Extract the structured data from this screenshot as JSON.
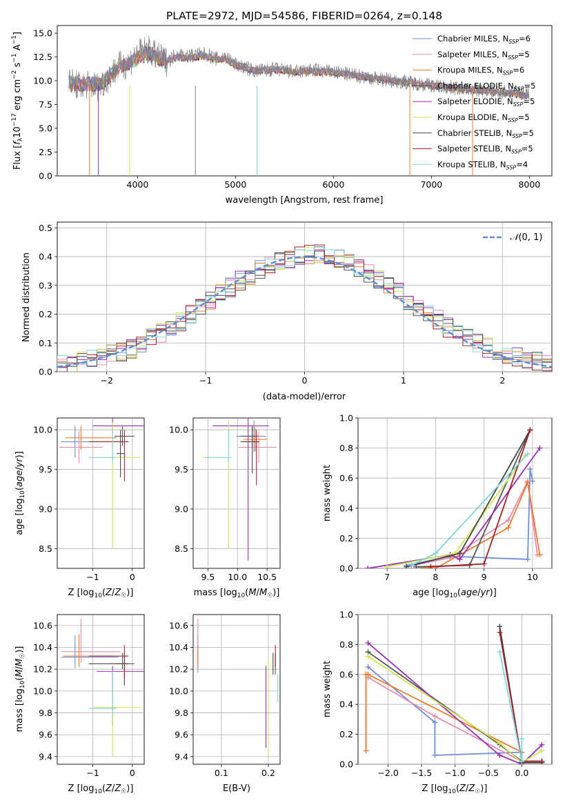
{
  "figure_title": "PLATE=2972, MJD=54586, FIBERID=0264, z=0.148",
  "palette": [
    "#6b8fd9",
    "#e98ab0",
    "#f07a27",
    "#555555",
    "#9b2db5",
    "#cde653",
    "#444444",
    "#a51e22",
    "#7fd3e0"
  ],
  "chart_data": [
    {
      "id": "spectrum",
      "type": "line",
      "title": "PLATE=2972, MJD=54586, FIBERID=0264, z=0.148",
      "xlabel": "wavelength [Angstrom, rest frame]",
      "ylabel": "Flux [f_λ10^-17 erg cm^-2 s^-1 A^-1]",
      "xlim": [
        3180,
        8230
      ],
      "ylim": [
        0,
        15.8
      ],
      "xticks": [
        4000,
        5000,
        6000,
        7000,
        8000
      ],
      "yticks": [
        0.0,
        2.5,
        5.0,
        7.5,
        10.0,
        12.5,
        15.0
      ],
      "legend_position": "top-right",
      "legend": [
        "Chabrier MILES, N_SSP=6",
        "Salpeter MILES, N_SSP=5",
        "Kroupa MILES, N_SSP=6",
        "Chabrier ELODIE, N_SSP=5",
        "Salpeter ELODIE, N_SSP=5",
        "Kroupa ELODIE, N_SSP=5",
        "Chabrier STELIB, N_SSP=5",
        "Salpeter STELIB, N_SSP=5",
        "Kroupa STELIB, N_SSP=4"
      ],
      "observed": {
        "x": [
          3300,
          3400,
          3500,
          3600,
          3700,
          3800,
          3900,
          4000,
          4100,
          4200,
          4300,
          4400,
          4500,
          4600,
          4700,
          4800,
          4900,
          5000,
          5200,
          5400,
          5600,
          5800,
          6000,
          6200,
          6400,
          6600,
          6800,
          7000,
          7200,
          7400,
          7600,
          7800,
          8000
        ],
        "y": [
          9.9,
          9.5,
          9.6,
          9.4,
          10.3,
          11.5,
          11.8,
          12.8,
          13.3,
          12.5,
          12.0,
          12.8,
          12.6,
          12.7,
          12.8,
          12.3,
          12.5,
          11.7,
          11.0,
          11.2,
          10.9,
          11.1,
          10.9,
          10.6,
          10.3,
          10.0,
          9.8,
          9.5,
          9.3,
          9.1,
          8.9,
          8.8,
          8.7
        ]
      },
      "models": {
        "x": [
          3300,
          3400,
          3500,
          3600,
          3700,
          3800,
          3900,
          4000,
          4100,
          4200,
          4300,
          4400,
          4500,
          4600,
          4700,
          4800,
          4900,
          5000,
          5200,
          5400,
          5600,
          5800,
          6000,
          6200,
          6400,
          6600,
          6800,
          7000,
          7200,
          7400,
          7600,
          7800,
          8000
        ],
        "y": [
          9.8,
          9.6,
          9.7,
          9.6,
          10.4,
          11.4,
          11.7,
          12.4,
          12.9,
          12.5,
          12.1,
          12.5,
          12.4,
          12.5,
          12.6,
          12.3,
          12.3,
          11.7,
          11.1,
          11.2,
          11.0,
          11.0,
          10.9,
          10.6,
          10.3,
          10.0,
          9.8,
          9.5,
          9.3,
          9.1,
          8.9,
          8.7,
          8.4
        ]
      }
    },
    {
      "id": "residuals",
      "type": "line",
      "xlabel": "(data-model)/error",
      "ylabel": "Normed distribution",
      "xlim": [
        -2.5,
        2.5
      ],
      "ylim": [
        0,
        0.52
      ],
      "xticks": [
        -2,
        -1,
        0,
        1,
        2
      ],
      "yticks": [
        0.0,
        0.1,
        0.2,
        0.3,
        0.4,
        0.5
      ],
      "legend_position": "top-right",
      "reference_curve": "N(0,1)",
      "bin_edges": [
        -2.5,
        -2.4,
        -2.3,
        -2.2,
        -2.1,
        -2.0,
        -1.9,
        -1.8,
        -1.7,
        -1.6,
        -1.5,
        -1.4,
        -1.3,
        -1.2,
        -1.1,
        -1.0,
        -0.9,
        -0.8,
        -0.7,
        -0.6,
        -0.5,
        -0.4,
        -0.3,
        -0.2,
        -0.1,
        0.0,
        0.1,
        0.2,
        0.3,
        0.4,
        0.5,
        0.6,
        0.7,
        0.8,
        0.9,
        1.0,
        1.1,
        1.2,
        1.3,
        1.4,
        1.5,
        1.6,
        1.7,
        1.8,
        1.9,
        2.0,
        2.1,
        2.2,
        2.3,
        2.4,
        2.5
      ],
      "histogram_values": [
        0.025,
        0.03,
        0.035,
        0.04,
        0.05,
        0.06,
        0.07,
        0.08,
        0.1,
        0.115,
        0.135,
        0.155,
        0.175,
        0.2,
        0.22,
        0.245,
        0.27,
        0.295,
        0.315,
        0.335,
        0.355,
        0.37,
        0.385,
        0.395,
        0.4,
        0.41,
        0.41,
        0.4,
        0.395,
        0.38,
        0.365,
        0.345,
        0.32,
        0.3,
        0.275,
        0.25,
        0.225,
        0.2,
        0.18,
        0.155,
        0.135,
        0.115,
        0.1,
        0.085,
        0.07,
        0.06,
        0.05,
        0.04,
        0.035,
        0.03
      ]
    },
    {
      "id": "age-vs-Z",
      "type": "scatter",
      "xlabel": "Z [log10(Z/Z☉)]",
      "ylabel": "age [log10(age/yr)]",
      "xlim": [
        -1.9,
        0.3
      ],
      "ylim": [
        8.25,
        10.15
      ],
      "xticks": [
        -1,
        0
      ],
      "yticks": [
        8.5,
        9.0,
        9.5,
        10.0
      ],
      "points": [
        {
          "x": -1.45,
          "y": 9.85,
          "xerr": [
            0.35,
            0.5
          ],
          "yerr": [
            0.2,
            0.2
          ]
        },
        {
          "x": -1.35,
          "y": 9.78,
          "xerr": [
            0.5,
            0.6
          ],
          "yerr": [
            0.2,
            0.2
          ]
        },
        {
          "x": -1.3,
          "y": 9.9,
          "xerr": [
            0.4,
            0.9
          ],
          "yerr": [
            0.15,
            0.15
          ]
        },
        {
          "x": -0.25,
          "y": 9.92,
          "xerr": [
            0.2,
            0.3
          ],
          "yerr": [
            0.12,
            0.12
          ]
        },
        {
          "x": -0.5,
          "y": 10.05,
          "xerr": [
            0.5,
            0.8
          ],
          "yerr": [
            0.1,
            0.1
          ]
        },
        {
          "x": -0.5,
          "y": 9.65,
          "xerr": [
            0.5,
            0.7
          ],
          "yerr": [
            1.15,
            0.45
          ]
        },
        {
          "x": -0.3,
          "y": 9.7,
          "xerr": [
            0.1,
            0.1
          ],
          "yerr": [
            0.3,
            0.3
          ]
        },
        {
          "x": -0.2,
          "y": 9.85,
          "xerr": [
            0.9,
            0.1
          ],
          "yerr": [
            0.5,
            0.15
          ]
        },
        {
          "x": -0.5,
          "y": 9.65,
          "xerr": [
            0.6,
            0.1
          ],
          "yerr": [
            0.05,
            0.35
          ]
        }
      ]
    },
    {
      "id": "age-vs-mass",
      "type": "scatter",
      "xlabel": "mass [log10(M/M☉)]",
      "ylabel": "",
      "xlim": [
        9.25,
        10.72
      ],
      "ylim": [
        8.25,
        10.15
      ],
      "xticks": [
        9.5,
        10.0,
        10.5
      ],
      "yticks": [
        8.5,
        9.0,
        9.5,
        10.0
      ],
      "points": [
        {
          "x": 10.28,
          "y": 9.92,
          "xerr": [
            0.3,
            0.2
          ],
          "yerr": [
            0.2,
            0.2
          ]
        },
        {
          "x": 10.36,
          "y": 9.78,
          "xerr": [
            0.35,
            0.3
          ],
          "yerr": [
            0.2,
            0.2
          ]
        },
        {
          "x": 10.3,
          "y": 9.88,
          "xerr": [
            0.2,
            0.2
          ],
          "yerr": [
            0.15,
            0.15
          ]
        },
        {
          "x": 10.25,
          "y": 9.92,
          "xerr": [
            0.2,
            0.1
          ],
          "yerr": [
            0.12,
            0.12
          ]
        },
        {
          "x": 10.18,
          "y": 10.05,
          "xerr": [
            0.6,
            0.35
          ],
          "yerr": [
            1.7,
            0.1
          ]
        },
        {
          "x": 9.85,
          "y": 9.65,
          "xerr": [
            0.45,
            0.05
          ],
          "yerr": [
            1.15,
            0.45
          ]
        },
        {
          "x": 10.25,
          "y": 9.85,
          "xerr": [
            0.2,
            0.05
          ],
          "yerr": [
            0.4,
            0.2
          ]
        },
        {
          "x": 10.32,
          "y": 9.85,
          "xerr": [
            0.2,
            0.05
          ],
          "yerr": [
            0.55,
            0.15
          ]
        },
        {
          "x": 9.85,
          "y": 9.65,
          "xerr": [
            0.4,
            0.05
          ],
          "yerr": [
            0.05,
            0.35
          ]
        }
      ]
    },
    {
      "id": "mass-weight-vs-age",
      "type": "line",
      "xlabel": "age [log10(age/yr)]",
      "ylabel": "mass weight",
      "xlim": [
        6.4,
        10.4
      ],
      "ylim": [
        0,
        1.0
      ],
      "xticks": [
        7,
        8,
        9,
        10
      ],
      "yticks": [
        0.0,
        0.2,
        0.4,
        0.6,
        0.8,
        1.0
      ],
      "series": [
        {
          "x": [
            7.4,
            8.3,
            9.9,
            9.95,
            10.0
          ],
          "y": [
            0.02,
            0.08,
            0.06,
            0.66,
            0.58
          ]
        },
        {
          "x": [
            7.4,
            8.3,
            9.5,
            9.9,
            10.1
          ],
          "y": [
            0.01,
            0.07,
            0.32,
            0.58,
            0.09
          ]
        },
        {
          "x": [
            7.6,
            8.0,
            9.5,
            9.9,
            10.15
          ],
          "y": [
            0.01,
            0.0,
            0.27,
            0.57,
            0.09
          ]
        },
        {
          "x": [
            7.6,
            8.7,
            9.95
          ],
          "y": [
            0.01,
            0.02,
            0.92
          ]
        },
        {
          "x": [
            6.6,
            8.3,
            8.5,
            10.15
          ],
          "y": [
            0.0,
            0.09,
            0.06,
            0.8
          ]
        },
        {
          "x": [
            7.0,
            8.4,
            9.85
          ],
          "y": [
            0.01,
            0.1,
            0.75
          ]
        },
        {
          "x": [
            7.4,
            8.5,
            9.95
          ],
          "y": [
            0.01,
            0.1,
            0.92
          ]
        },
        {
          "x": [
            7.9,
            9.0,
            9.95
          ],
          "y": [
            0.01,
            0.03,
            0.92
          ]
        },
        {
          "x": [
            7.5,
            8.0,
            9.9
          ],
          "y": [
            0.02,
            0.1,
            0.76
          ]
        }
      ]
    },
    {
      "id": "mass-vs-Z",
      "type": "scatter",
      "xlabel": "Z [log10(Z/Z☉)]",
      "ylabel": "mass [log10(M/M☉)]",
      "xlim": [
        -1.9,
        0.3
      ],
      "ylim": [
        9.33,
        10.7
      ],
      "xticks": [
        -1,
        0
      ],
      "yticks": [
        9.4,
        9.6,
        9.8,
        10.0,
        10.2,
        10.4,
        10.6
      ],
      "points": [
        {
          "x": -1.45,
          "y": 10.31,
          "xerr": [
            0.35,
            1.1
          ],
          "yerr": [
            0.1,
            0.2
          ]
        },
        {
          "x": -1.3,
          "y": 10.36,
          "xerr": [
            0.5,
            1.0
          ],
          "yerr": [
            0.1,
            0.3
          ]
        },
        {
          "x": -1.35,
          "y": 10.32,
          "xerr": [
            0.4,
            0.9
          ],
          "yerr": [
            0.1,
            0.2
          ]
        },
        {
          "x": -0.25,
          "y": 10.25,
          "xerr": [
            0.2,
            0.3
          ],
          "yerr": [
            0.05,
            0.1
          ]
        },
        {
          "x": -0.5,
          "y": 10.18,
          "xerr": [
            0.4,
            0.8
          ],
          "yerr": [
            0.5,
            0.05
          ]
        },
        {
          "x": -0.5,
          "y": 9.85,
          "xerr": [
            0.5,
            0.7
          ],
          "yerr": [
            0.45,
            0.15
          ]
        },
        {
          "x": -0.2,
          "y": 10.25,
          "xerr": [
            0.9,
            0.1
          ],
          "yerr": [
            0.2,
            0.1
          ]
        },
        {
          "x": -0.2,
          "y": 10.32,
          "xerr": [
            0.9,
            0.1
          ],
          "yerr": [
            0.2,
            0.1
          ]
        },
        {
          "x": -0.5,
          "y": 9.84,
          "xerr": [
            0.6,
            0.1
          ],
          "yerr": [
            0.05,
            0.35
          ]
        }
      ]
    },
    {
      "id": "mass-vs-EBV",
      "type": "scatter",
      "xlabel": "E(B-V)",
      "ylabel": "",
      "xlim": [
        0.04,
        0.225
      ],
      "ylim": [
        9.33,
        10.7
      ],
      "xticks": [
        0.1,
        0.2
      ],
      "yticks": [
        9.4,
        9.6,
        9.8,
        10.0,
        10.2,
        10.4,
        10.6
      ],
      "points": [
        {
          "x": 0.05,
          "y": 10.32,
          "yerr": [
            0.15,
            0.2
          ]
        },
        {
          "x": 0.05,
          "y": 10.36,
          "yerr": [
            0.15,
            0.3
          ]
        },
        {
          "x": 0.05,
          "y": 10.32,
          "yerr": [
            0.1,
            0.1
          ]
        },
        {
          "x": 0.215,
          "y": 10.25,
          "yerr": [
            0.1,
            0.1
          ]
        },
        {
          "x": 0.195,
          "y": 10.18,
          "yerr": [
            0.7,
            0.05
          ]
        },
        {
          "x": 0.2,
          "y": 9.85,
          "yerr": [
            0.45,
            0.45
          ]
        },
        {
          "x": 0.21,
          "y": 10.25,
          "yerr": [
            0.1,
            0.1
          ]
        },
        {
          "x": 0.215,
          "y": 10.32,
          "yerr": [
            0.1,
            0.1
          ]
        },
        {
          "x": 0.22,
          "y": 10.0,
          "yerr": [
            0.1,
            0.15
          ]
        }
      ]
    },
    {
      "id": "mass-weight-vs-Z",
      "type": "line",
      "xlabel": "Z [log10(Z/Z☉)]",
      "ylabel": "mass weight",
      "xlim": [
        -2.45,
        0.45
      ],
      "ylim": [
        0,
        1.0
      ],
      "xticks": [
        -2.0,
        -1.5,
        -1.0,
        -0.5,
        0.0
      ],
      "yticks": [
        0.0,
        0.2,
        0.4,
        0.6,
        0.8,
        1.0
      ],
      "series": [
        {
          "x": [
            -2.3,
            -1.3,
            -1.3,
            0.0,
            0.0
          ],
          "y": [
            0.65,
            0.28,
            0.06,
            0.08,
            0.0
          ]
        },
        {
          "x": [
            -2.3,
            -1.3,
            0.0,
            0.0
          ],
          "y": [
            0.58,
            0.32,
            0.02,
            0.0
          ]
        },
        {
          "x": [
            -2.33,
            -2.33,
            -2.3,
            0.0,
            0.0
          ],
          "y": [
            0.09,
            0.6,
            0.6,
            0.08,
            0.0
          ]
        },
        {
          "x": [
            -2.3,
            -0.33,
            0.0,
            0.3
          ],
          "y": [
            0.75,
            0.13,
            0.02,
            0.02
          ]
        },
        {
          "x": [
            -2.3,
            -0.33,
            0.0,
            0.3
          ],
          "y": [
            0.81,
            0.06,
            0.0,
            0.13
          ]
        },
        {
          "x": [
            -2.3,
            -0.33,
            0.0,
            0.3
          ],
          "y": [
            0.72,
            0.14,
            0.01,
            0.09
          ]
        },
        {
          "x": [
            -0.33,
            0.0,
            0.3
          ],
          "y": [
            0.92,
            0.01,
            0.01
          ]
        },
        {
          "x": [
            -0.33,
            0.0,
            0.3
          ],
          "y": [
            0.88,
            0.02,
            0.02
          ]
        },
        {
          "x": [
            -0.33,
            0.0,
            0.0
          ],
          "y": [
            0.75,
            0.02,
            0.17
          ]
        }
      ]
    }
  ]
}
